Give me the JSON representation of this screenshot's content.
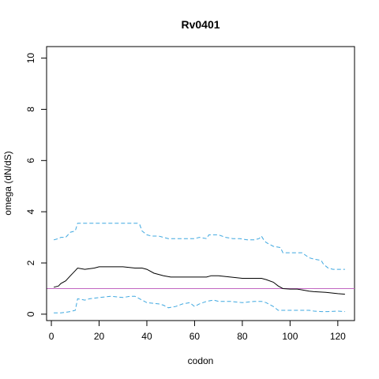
{
  "chart_data": {
    "type": "line",
    "title": "Rv0401",
    "xlabel": "codon",
    "ylabel": "omega (dN/dS)",
    "xlim": [
      -2,
      127
    ],
    "ylim": [
      -0.25,
      10.45
    ],
    "xticks": [
      0,
      20,
      40,
      60,
      80,
      100,
      120
    ],
    "yticks": [
      0,
      2,
      4,
      6,
      8,
      10
    ],
    "grid": false,
    "reference_line": {
      "y": 1,
      "color": "#c266c2"
    },
    "series": [
      {
        "role": "upper-bound",
        "style": "dashed",
        "color": "#3fa8e0",
        "x": [
          1,
          3,
          4,
          6,
          8,
          10,
          11,
          14,
          20,
          30,
          36,
          37,
          38,
          40,
          42,
          45,
          47,
          49,
          55,
          60,
          62,
          65,
          66,
          70,
          73,
          76,
          79,
          82,
          85,
          87,
          88,
          89,
          90,
          93,
          96,
          97,
          103,
          105,
          108,
          110,
          113,
          114,
          116,
          118,
          123
        ],
        "values": [
          2.9,
          2.95,
          3.0,
          3.0,
          3.2,
          3.25,
          3.55,
          3.55,
          3.55,
          3.55,
          3.55,
          3.5,
          3.25,
          3.1,
          3.05,
          3.05,
          3.0,
          2.95,
          2.95,
          2.95,
          3.0,
          2.95,
          3.1,
          3.1,
          3.0,
          2.95,
          2.95,
          2.9,
          2.9,
          2.95,
          3.05,
          2.9,
          2.8,
          2.65,
          2.6,
          2.4,
          2.4,
          2.4,
          2.2,
          2.15,
          2.1,
          1.95,
          1.8,
          1.75,
          1.75
        ]
      },
      {
        "role": "estimate",
        "style": "solid",
        "color": "#000000",
        "x": [
          1,
          3,
          4,
          6,
          8,
          10,
          11,
          14,
          18,
          20,
          25,
          30,
          35,
          38,
          40,
          43,
          45,
          47,
          50,
          55,
          60,
          65,
          67,
          70,
          75,
          80,
          85,
          88,
          90,
          93,
          95,
          97,
          100,
          103,
          105,
          108,
          110,
          115,
          120,
          123
        ],
        "values": [
          1.05,
          1.1,
          1.2,
          1.3,
          1.5,
          1.7,
          1.8,
          1.75,
          1.8,
          1.85,
          1.85,
          1.85,
          1.8,
          1.8,
          1.75,
          1.6,
          1.55,
          1.5,
          1.45,
          1.45,
          1.45,
          1.45,
          1.5,
          1.5,
          1.45,
          1.4,
          1.4,
          1.4,
          1.35,
          1.25,
          1.1,
          1.0,
          0.98,
          0.98,
          0.95,
          0.9,
          0.88,
          0.85,
          0.8,
          0.78
        ]
      },
      {
        "role": "lower-bound",
        "style": "dashed",
        "color": "#3fa8e0",
        "x": [
          1,
          4,
          8,
          10,
          11,
          14,
          16,
          20,
          25,
          30,
          33,
          35,
          38,
          40,
          45,
          47,
          49,
          52,
          55,
          58,
          60,
          62,
          65,
          68,
          70,
          75,
          80,
          85,
          88,
          90,
          93,
          95,
          100,
          105,
          108,
          110,
          113,
          116,
          120,
          123
        ],
        "values": [
          0.05,
          0.05,
          0.1,
          0.15,
          0.6,
          0.55,
          0.6,
          0.65,
          0.7,
          0.65,
          0.7,
          0.7,
          0.55,
          0.45,
          0.4,
          0.35,
          0.25,
          0.3,
          0.4,
          0.45,
          0.3,
          0.4,
          0.5,
          0.55,
          0.5,
          0.5,
          0.45,
          0.5,
          0.5,
          0.45,
          0.3,
          0.15,
          0.15,
          0.15,
          0.15,
          0.12,
          0.1,
          0.1,
          0.12,
          0.1
        ]
      }
    ]
  }
}
